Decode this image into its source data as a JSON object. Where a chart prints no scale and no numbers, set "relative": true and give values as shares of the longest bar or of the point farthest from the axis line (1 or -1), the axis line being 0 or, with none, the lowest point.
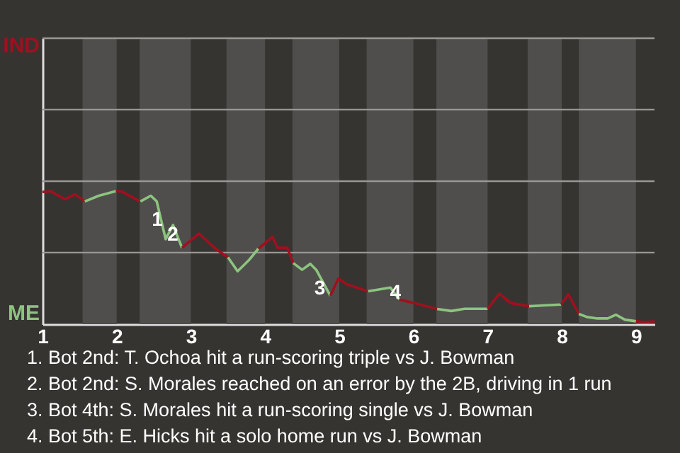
{
  "chart_data": {
    "type": "line",
    "relative": true,
    "series": [
      {
        "color": "#a0101e",
        "x": [
          1.0,
          1.11,
          1.3,
          1.44,
          1.57
        ],
        "values": [
          0.994,
          1,
          0.94,
          0.976,
          0.923
        ]
      },
      {
        "color": "#8dc47f",
        "x": [
          1.57,
          1.76,
          1.99
        ],
        "values": [
          0.923,
          0.966,
          1
        ]
      },
      {
        "color": "#a0101e",
        "x": [
          1.99,
          2.06,
          2.32
        ],
        "values": [
          1,
          1,
          0.923
        ]
      },
      {
        "color": "#8dc47f",
        "x": [
          2.32,
          2.46,
          2.54,
          2.66,
          2.76,
          2.88
        ],
        "values": [
          0.923,
          0.966,
          0.923,
          0.639,
          0.746,
          0.574
        ]
      },
      {
        "color": "#a0101e",
        "x": [
          2.88,
          3.11,
          3.33,
          3.5
        ],
        "values": [
          0.574,
          0.682,
          0.568,
          0.503
        ]
      },
      {
        "color": "#8dc47f",
        "x": [
          3.5,
          3.63,
          3.78,
          3.91
        ],
        "values": [
          0.503,
          0.398,
          0.48,
          0.568
        ]
      },
      {
        "color": "#a0101e",
        "x": [
          3.91,
          4.1,
          4.17,
          4.3,
          4.38
        ],
        "values": [
          0.568,
          0.656,
          0.574,
          0.574,
          0.46
        ]
      },
      {
        "color": "#8dc47f",
        "x": [
          4.38,
          4.5,
          4.61,
          4.69,
          4.88
        ],
        "values": [
          0.46,
          0.409,
          0.454,
          0.409,
          0.213
        ]
      },
      {
        "color": "#a0101e",
        "x": [
          4.88,
          4.99,
          5.1,
          5.39
        ],
        "values": [
          0.213,
          0.344,
          0.301,
          0.247
        ]
      },
      {
        "color": "#8dc47f",
        "x": [
          5.39,
          5.69,
          5.81
        ],
        "values": [
          0.247,
          0.275,
          0.185
        ]
      },
      {
        "color": "#a0101e",
        "x": [
          5.81,
          6.01,
          6.32
        ],
        "values": [
          0.185,
          0.159,
          0.114
        ]
      },
      {
        "color": "#8dc47f",
        "x": [
          6.32,
          6.51,
          6.69,
          7.0
        ],
        "values": [
          0.114,
          0.099,
          0.116,
          0.116
        ]
      },
      {
        "color": "#a0101e",
        "x": [
          7.0,
          7.16,
          7.31,
          7.56
        ],
        "values": [
          0.116,
          0.23,
          0.159,
          0.135
        ]
      },
      {
        "color": "#8dc47f",
        "x": [
          7.56,
          7.99
        ],
        "values": [
          0.135,
          0.148
        ]
      },
      {
        "color": "#a0101e",
        "x": [
          7.99,
          8.09,
          8.23
        ],
        "values": [
          0.148,
          0.224,
          0.077
        ]
      },
      {
        "color": "#8dc47f",
        "x": [
          8.23,
          8.34,
          8.48,
          8.62,
          8.73,
          8.85,
          9.0
        ],
        "values": [
          0.077,
          0.054,
          0.043,
          0.043,
          0.071,
          0.034,
          0.022
        ]
      },
      {
        "color": "#a0101e",
        "x": [
          9.0,
          9.13,
          9.25
        ],
        "values": [
          0.022,
          0.015,
          0.022
        ]
      }
    ],
    "xlim": [
      1,
      9.25
    ],
    "xticks": [
      1,
      2,
      3,
      4,
      5,
      6,
      7,
      8,
      9
    ],
    "ref_lines": [
      {
        "axis": "y",
        "value": 0.538,
        "color": "#9a9894"
      },
      {
        "axis": "y",
        "value": 1.075,
        "color": "#9a9894"
      },
      {
        "axis": "y",
        "value": 1.613,
        "color": "#9a9894"
      },
      {
        "axis": "y",
        "value": 2.15,
        "color": "#9a9894"
      }
    ],
    "bands": [
      {
        "axis": "x",
        "from": 1.54,
        "to": 2,
        "color": "#4f4e4c"
      },
      {
        "axis": "x",
        "from": 2.31,
        "to": 3,
        "color": "#4f4e4c"
      },
      {
        "axis": "x",
        "from": 3.48,
        "to": 4,
        "color": "#4f4e4c"
      },
      {
        "axis": "x",
        "from": 4.37,
        "to": 5,
        "color": "#4f4e4c"
      },
      {
        "axis": "x",
        "from": 5.37,
        "to": 6,
        "color": "#4f4e4c"
      },
      {
        "axis": "x",
        "from": 6.31,
        "to": 7,
        "color": "#4f4e4c"
      },
      {
        "axis": "x",
        "from": 7.54,
        "to": 8,
        "color": "#4f4e4c"
      },
      {
        "axis": "x",
        "from": 8.23,
        "to": 9,
        "color": "#4f4e4c"
      }
    ],
    "annotations": [
      "IND",
      "ME",
      {
        "text": "1",
        "x": 2.72,
        "y": 0.71
      },
      {
        "text": "2",
        "x": 2.93,
        "y": 0.596
      },
      {
        "text": "3",
        "x": 4.91,
        "y": 0.194
      },
      {
        "text": "4",
        "x": 5.93,
        "y": 0.159
      },
      "1. Bot 2nd: T. Ochoa hit a run-scoring triple vs J. Bowman",
      "2. Bot 2nd: S. Morales reached on an error by the 2B, driving in 1 run",
      "3. Bot 4th: S. Morales hit a run-scoring single vs J. Bowman",
      "4. Bot 5th: E. Hicks hit a solo home run vs J. Bowman"
    ],
    "marker": "none",
    "line_style": "solid"
  }
}
